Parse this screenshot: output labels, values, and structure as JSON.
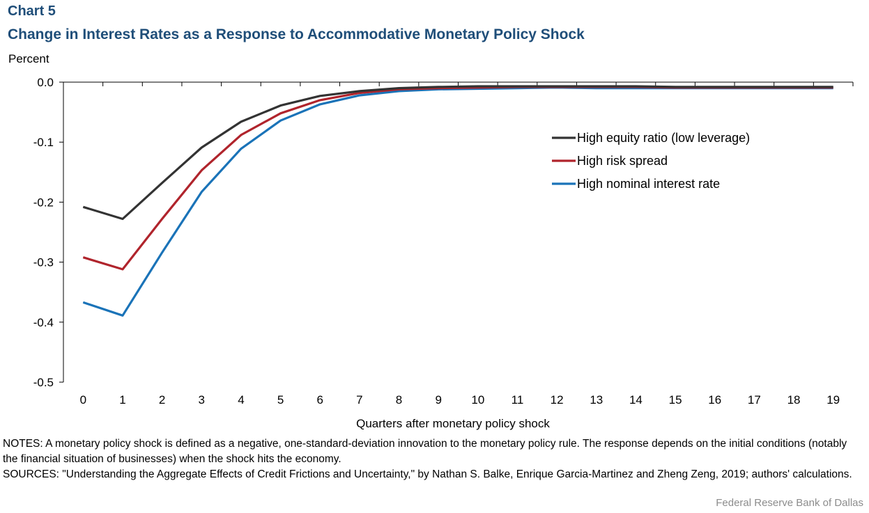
{
  "header": {
    "label": "Chart 5",
    "title": "Change in Interest Rates as a Response to Accommodative Monetary Policy Shock"
  },
  "chart_data": {
    "type": "line",
    "ylabel": "Percent",
    "xlabel": "Quarters after monetary policy shock",
    "ylim": [
      -0.5,
      0.0
    ],
    "yticks": [
      "0.0",
      "-0.1",
      "-0.2",
      "-0.3",
      "-0.4",
      "-0.5"
    ],
    "x": [
      0,
      1,
      2,
      3,
      4,
      5,
      6,
      7,
      8,
      9,
      10,
      11,
      12,
      13,
      14,
      15,
      16,
      17,
      18,
      19
    ],
    "legend_position": "right",
    "grid": false,
    "series": [
      {
        "name": "High equity ratio (low leverage)",
        "color": "#333333",
        "values": [
          -0.208,
          -0.228,
          -0.168,
          -0.109,
          -0.066,
          -0.039,
          -0.023,
          -0.015,
          -0.01,
          -0.008,
          -0.007,
          -0.007,
          -0.007,
          -0.007,
          -0.007,
          -0.008,
          -0.008,
          -0.008,
          -0.008,
          -0.008
        ]
      },
      {
        "name": "High risk spread",
        "color": "#b0242c",
        "values": [
          -0.292,
          -0.312,
          -0.228,
          -0.147,
          -0.088,
          -0.052,
          -0.03,
          -0.018,
          -0.012,
          -0.01,
          -0.009,
          -0.008,
          -0.008,
          -0.008,
          -0.008,
          -0.009,
          -0.009,
          -0.009,
          -0.009,
          -0.009
        ]
      },
      {
        "name": "High nominal interest rate",
        "color": "#1a73b8",
        "values": [
          -0.367,
          -0.389,
          -0.284,
          -0.183,
          -0.111,
          -0.064,
          -0.037,
          -0.022,
          -0.015,
          -0.012,
          -0.011,
          -0.01,
          -0.009,
          -0.01,
          -0.01,
          -0.01,
          -0.01,
          -0.01,
          -0.01,
          -0.01
        ]
      }
    ]
  },
  "notes": {
    "notes_text": "NOTES: A monetary policy shock is defined as a negative, one-standard-deviation innovation to the monetary policy rule. The response depends on the initial conditions (notably the financial situation of businesses) when the shock hits the economy.",
    "sources_text": "SOURCES: \"Understanding the Aggregate Effects of Credit Frictions and Uncertainty,\" by Nathan S. Balke, Enrique Garcia-Martinez and Zheng Zeng, 2019; authors' calculations."
  },
  "footer": {
    "credit": "Federal Reserve Bank of Dallas"
  }
}
